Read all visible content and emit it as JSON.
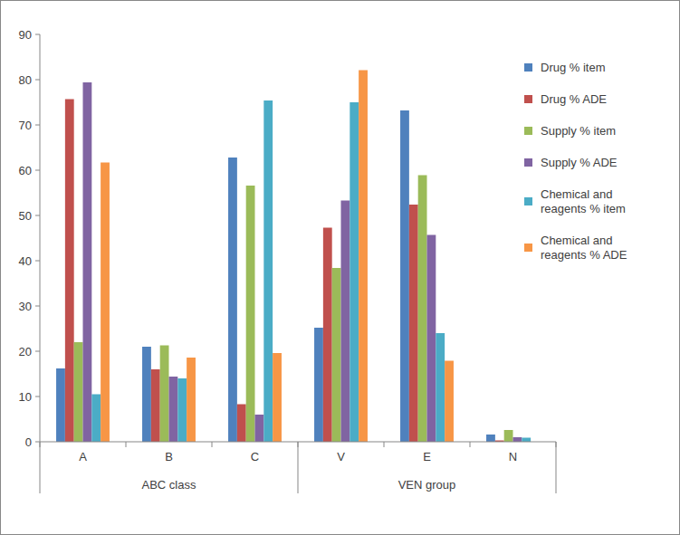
{
  "chart_data": {
    "type": "bar",
    "categories": [
      "A",
      "B",
      "C",
      "V",
      "E",
      "N"
    ],
    "category_groups": [
      {
        "name": "ABC class",
        "categories": [
          "A",
          "B",
          "C"
        ]
      },
      {
        "name": "VEN group",
        "categories": [
          "V",
          "E",
          "N"
        ]
      }
    ],
    "series": [
      {
        "name": "Drug % item",
        "color": "#4f81bd",
        "values": [
          16.2,
          21,
          62.8,
          25.2,
          73.2,
          1.6
        ]
      },
      {
        "name": "Drug % ADE",
        "color": "#c0504d",
        "values": [
          75.7,
          16,
          8.3,
          47.3,
          52.4,
          0.3
        ]
      },
      {
        "name": "Supply % item",
        "color": "#9bbb59",
        "values": [
          22,
          21.3,
          56.6,
          38.4,
          58.9,
          2.6
        ]
      },
      {
        "name": "Supply % ADE",
        "color": "#8064a2",
        "values": [
          79.4,
          14.4,
          6,
          53.3,
          45.7,
          1
        ]
      },
      {
        "name": "Chemical and reagents % item",
        "color": "#4bacc6",
        "values": [
          10.5,
          14,
          75.4,
          75,
          24,
          0.9
        ]
      },
      {
        "name": "Chemical and reagents % ADE",
        "color": "#f79646",
        "values": [
          61.7,
          18.6,
          19.6,
          82.1,
          17.9,
          0
        ]
      }
    ],
    "ylim": [
      0,
      90
    ],
    "yticks": [
      0,
      10,
      20,
      30,
      40,
      50,
      60,
      70,
      80,
      90
    ],
    "grid": false,
    "legend": "right"
  }
}
